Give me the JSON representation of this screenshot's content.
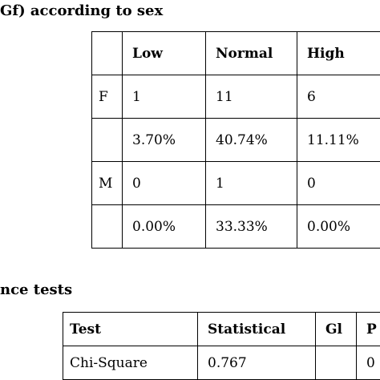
{
  "heading_1": "Gf) according to sex",
  "table_1": {
    "header": [
      "",
      "Low",
      "Normal",
      "High"
    ],
    "rows": [
      [
        "F",
        "1",
        "11",
        "6"
      ],
      [
        "",
        "3.70%",
        "40.74%",
        "11.11%"
      ],
      [
        "M",
        "0",
        "1",
        "0"
      ],
      [
        "",
        "0.00%",
        "33.33%",
        "0.00%"
      ]
    ]
  },
  "heading_2": "nce tests",
  "table_2": {
    "header": [
      "Test",
      "Statistical",
      "Gl",
      "P"
    ],
    "rows": [
      [
        "Chi-Square",
        "0.767",
        "",
        "0"
      ]
    ]
  }
}
